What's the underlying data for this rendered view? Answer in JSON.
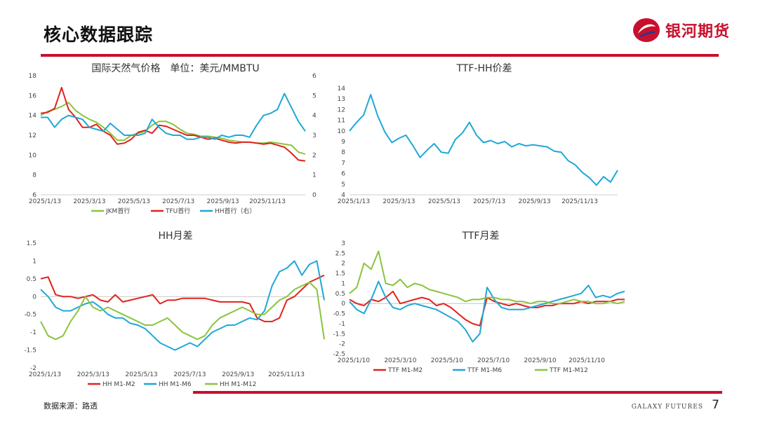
{
  "header": {
    "title": "核心数据跟踪",
    "logo_text": "银河期货"
  },
  "footer": {
    "source": "数据来源：路透",
    "brand": "GALAXY FUTURES",
    "page": "7"
  },
  "colors": {
    "accent": "#c8102e",
    "green": "#8ac43f",
    "red": "#e0231c",
    "blue": "#1fa8d8"
  },
  "chart_data": [
    {
      "type": "line",
      "title": "国际天然气价格　单位：美元/MMBTU",
      "x_ticks": [
        "2025/1/13",
        "2025/3/13",
        "2025/5/13",
        "2025/7/13",
        "2025/9/13",
        "2025/11/13"
      ],
      "ylim": [
        6,
        18
      ],
      "y_ticks": [
        "6",
        "8",
        "10",
        "12",
        "14",
        "16",
        "18"
      ],
      "y2lim": [
        0,
        6
      ],
      "y2_ticks": [
        "0",
        "1",
        "2",
        "3",
        "4",
        "5",
        "6"
      ],
      "series": [
        {
          "name": "JKM首行",
          "color": "#8ac43f",
          "axis": "left",
          "values": [
            14.0,
            14.4,
            14.6,
            14.9,
            15.3,
            14.5,
            14.0,
            13.6,
            13.3,
            12.8,
            12.2,
            11.5,
            11.5,
            12.0,
            12.2,
            12.4,
            13.0,
            13.4,
            13.4,
            13.1,
            12.6,
            12.2,
            12.1,
            11.9,
            11.9,
            11.8,
            11.7,
            11.5,
            11.4,
            11.3,
            11.3,
            11.2,
            11.2,
            11.3,
            11.2,
            11.1,
            11.0,
            10.3,
            10.1
          ]
        },
        {
          "name": "TFU首行",
          "color": "#e0231c",
          "axis": "left",
          "values": [
            14.2,
            14.3,
            14.7,
            16.8,
            14.6,
            13.8,
            12.8,
            12.8,
            13.1,
            12.4,
            12.0,
            11.1,
            11.2,
            11.6,
            12.3,
            12.5,
            12.2,
            13.0,
            12.9,
            12.6,
            12.3,
            12.0,
            12.0,
            11.8,
            11.6,
            11.7,
            11.5,
            11.3,
            11.2,
            11.3,
            11.3,
            11.2,
            11.1,
            11.2,
            11.0,
            10.8,
            10.2,
            9.5,
            9.4
          ]
        },
        {
          "name": "HH首行（右）",
          "color": "#1fa8d8",
          "axis": "right",
          "values": [
            3.9,
            3.9,
            3.4,
            3.8,
            4.0,
            3.9,
            3.8,
            3.4,
            3.3,
            3.2,
            3.6,
            3.3,
            3.0,
            3.0,
            3.0,
            3.1,
            3.8,
            3.4,
            3.1,
            3.0,
            3.0,
            2.8,
            2.8,
            2.9,
            2.9,
            2.8,
            3.0,
            2.9,
            3.0,
            3.0,
            2.9,
            3.5,
            4.0,
            4.1,
            4.3,
            5.1,
            4.4,
            3.7,
            3.2
          ]
        }
      ]
    },
    {
      "type": "line",
      "title": "TTF-HH价差",
      "x_ticks": [
        "2025/1/13",
        "2025/3/13",
        "2025/5/13",
        "2025/7/13",
        "2025/9/13",
        "2025/11/13"
      ],
      "ylim": [
        4,
        14
      ],
      "y_ticks": [
        "4",
        "5",
        "6",
        "7",
        "8",
        "9",
        "10",
        "11",
        "12",
        "13",
        "14"
      ],
      "series": [
        {
          "color": "#1fa8d8",
          "values": [
            10.0,
            10.8,
            11.5,
            13.4,
            11.4,
            9.9,
            8.9,
            9.3,
            9.6,
            8.6,
            7.5,
            8.2,
            8.8,
            8.0,
            7.9,
            9.2,
            9.8,
            10.8,
            9.6,
            8.9,
            9.1,
            8.8,
            9.0,
            8.5,
            8.8,
            8.6,
            8.7,
            8.6,
            8.5,
            8.1,
            8.0,
            7.2,
            6.8,
            6.1,
            5.6,
            4.9,
            5.7,
            5.2,
            6.3
          ]
        }
      ]
    },
    {
      "type": "line",
      "title": "HH月差",
      "x_ticks": [
        "2025/1/13",
        "2025/3/13",
        "2025/5/13",
        "2025/7/13",
        "2025/9/13",
        "2025/11/13"
      ],
      "ylim": [
        -2,
        1.5
      ],
      "y_ticks": [
        "-2",
        "-1.5",
        "-1",
        "-0.5",
        "0",
        "0.5",
        "1",
        "1.5"
      ],
      "series": [
        {
          "name": "HH M1-M2",
          "color": "#e0231c",
          "values": [
            0.5,
            0.55,
            0.05,
            0.0,
            0.0,
            -0.05,
            0.0,
            0.05,
            -0.1,
            -0.15,
            0.05,
            -0.15,
            -0.1,
            -0.05,
            0.0,
            0.05,
            -0.2,
            -0.1,
            -0.1,
            -0.05,
            -0.05,
            -0.05,
            -0.05,
            -0.1,
            -0.15,
            -0.15,
            -0.15,
            -0.15,
            -0.2,
            -0.6,
            -0.7,
            -0.7,
            -0.6,
            -0.1,
            0.0,
            0.2,
            0.4,
            0.5,
            0.6
          ]
        },
        {
          "name": "HH M1-M6",
          "color": "#1fa8d8",
          "values": [
            0.2,
            0.0,
            -0.3,
            -0.4,
            -0.4,
            -0.3,
            -0.2,
            -0.15,
            -0.3,
            -0.5,
            -0.6,
            -0.6,
            -0.75,
            -0.8,
            -0.9,
            -1.1,
            -1.3,
            -1.4,
            -1.5,
            -1.4,
            -1.3,
            -1.4,
            -1.2,
            -1.0,
            -0.9,
            -0.8,
            -0.8,
            -0.7,
            -0.6,
            -0.65,
            -0.4,
            0.3,
            0.7,
            0.8,
            1.0,
            0.6,
            0.9,
            1.0,
            -0.1
          ]
        },
        {
          "name": "HH M1-M12",
          "color": "#8ac43f",
          "values": [
            -0.7,
            -1.1,
            -1.2,
            -1.1,
            -0.7,
            -0.4,
            0.0,
            -0.3,
            -0.4,
            -0.3,
            -0.4,
            -0.5,
            -0.6,
            -0.7,
            -0.8,
            -0.8,
            -0.7,
            -0.6,
            -0.8,
            -1.0,
            -1.1,
            -1.2,
            -1.1,
            -0.8,
            -0.6,
            -0.5,
            -0.4,
            -0.3,
            -0.4,
            -0.5,
            -0.5,
            -0.3,
            -0.1,
            0.0,
            0.2,
            0.3,
            0.4,
            0.2,
            -1.2
          ]
        }
      ]
    },
    {
      "type": "line",
      "title": "TTF月差",
      "x_ticks": [
        "2025/1/10",
        "2025/3/10",
        "2025/5/10",
        "2025/7/10",
        "2025/9/10",
        "2025/11/10"
      ],
      "ylim": [
        -2.5,
        3
      ],
      "y_ticks": [
        "-2.5",
        "-2",
        "-1.5",
        "-1",
        "-0.5",
        "0",
        "0.5",
        "1",
        "1.5",
        "2",
        "2.5",
        "3"
      ],
      "series": [
        {
          "name": "TTF M1-M2",
          "color": "#e0231c",
          "values": [
            0.2,
            0.0,
            -0.1,
            0.2,
            0.1,
            0.3,
            0.6,
            0.0,
            0.1,
            0.2,
            0.3,
            0.2,
            -0.1,
            0.0,
            -0.2,
            -0.5,
            -0.8,
            -1.0,
            -1.1,
            0.3,
            0.1,
            0.0,
            -0.1,
            0.0,
            -0.1,
            -0.2,
            -0.2,
            -0.1,
            -0.1,
            0.0,
            0.0,
            0.0,
            0.1,
            0.0,
            0.1,
            0.1,
            0.1,
            0.2,
            0.2
          ]
        },
        {
          "name": "TTF M1-M6",
          "color": "#1fa8d8",
          "values": [
            0.1,
            -0.3,
            -0.5,
            0.2,
            1.1,
            0.3,
            -0.2,
            -0.3,
            -0.1,
            0.0,
            -0.1,
            -0.2,
            -0.3,
            -0.5,
            -0.7,
            -0.9,
            -1.3,
            -1.9,
            -1.5,
            0.8,
            0.2,
            -0.2,
            -0.3,
            -0.3,
            -0.3,
            -0.2,
            -0.1,
            0.0,
            0.1,
            0.2,
            0.3,
            0.4,
            0.5,
            0.9,
            0.3,
            0.4,
            0.3,
            0.5,
            0.6
          ]
        },
        {
          "name": "TTF M1-M12",
          "color": "#8ac43f",
          "values": [
            0.5,
            0.8,
            2.0,
            1.7,
            2.6,
            1.0,
            0.9,
            1.2,
            0.8,
            1.0,
            0.9,
            0.7,
            0.6,
            0.5,
            0.4,
            0.3,
            0.1,
            0.2,
            0.2,
            0.3,
            0.3,
            0.2,
            0.2,
            0.1,
            0.1,
            0.0,
            0.1,
            0.1,
            0.0,
            0.0,
            0.1,
            0.2,
            0.1,
            0.1,
            0.0,
            0.0,
            0.1,
            0.0,
            0.1
          ]
        }
      ]
    }
  ]
}
